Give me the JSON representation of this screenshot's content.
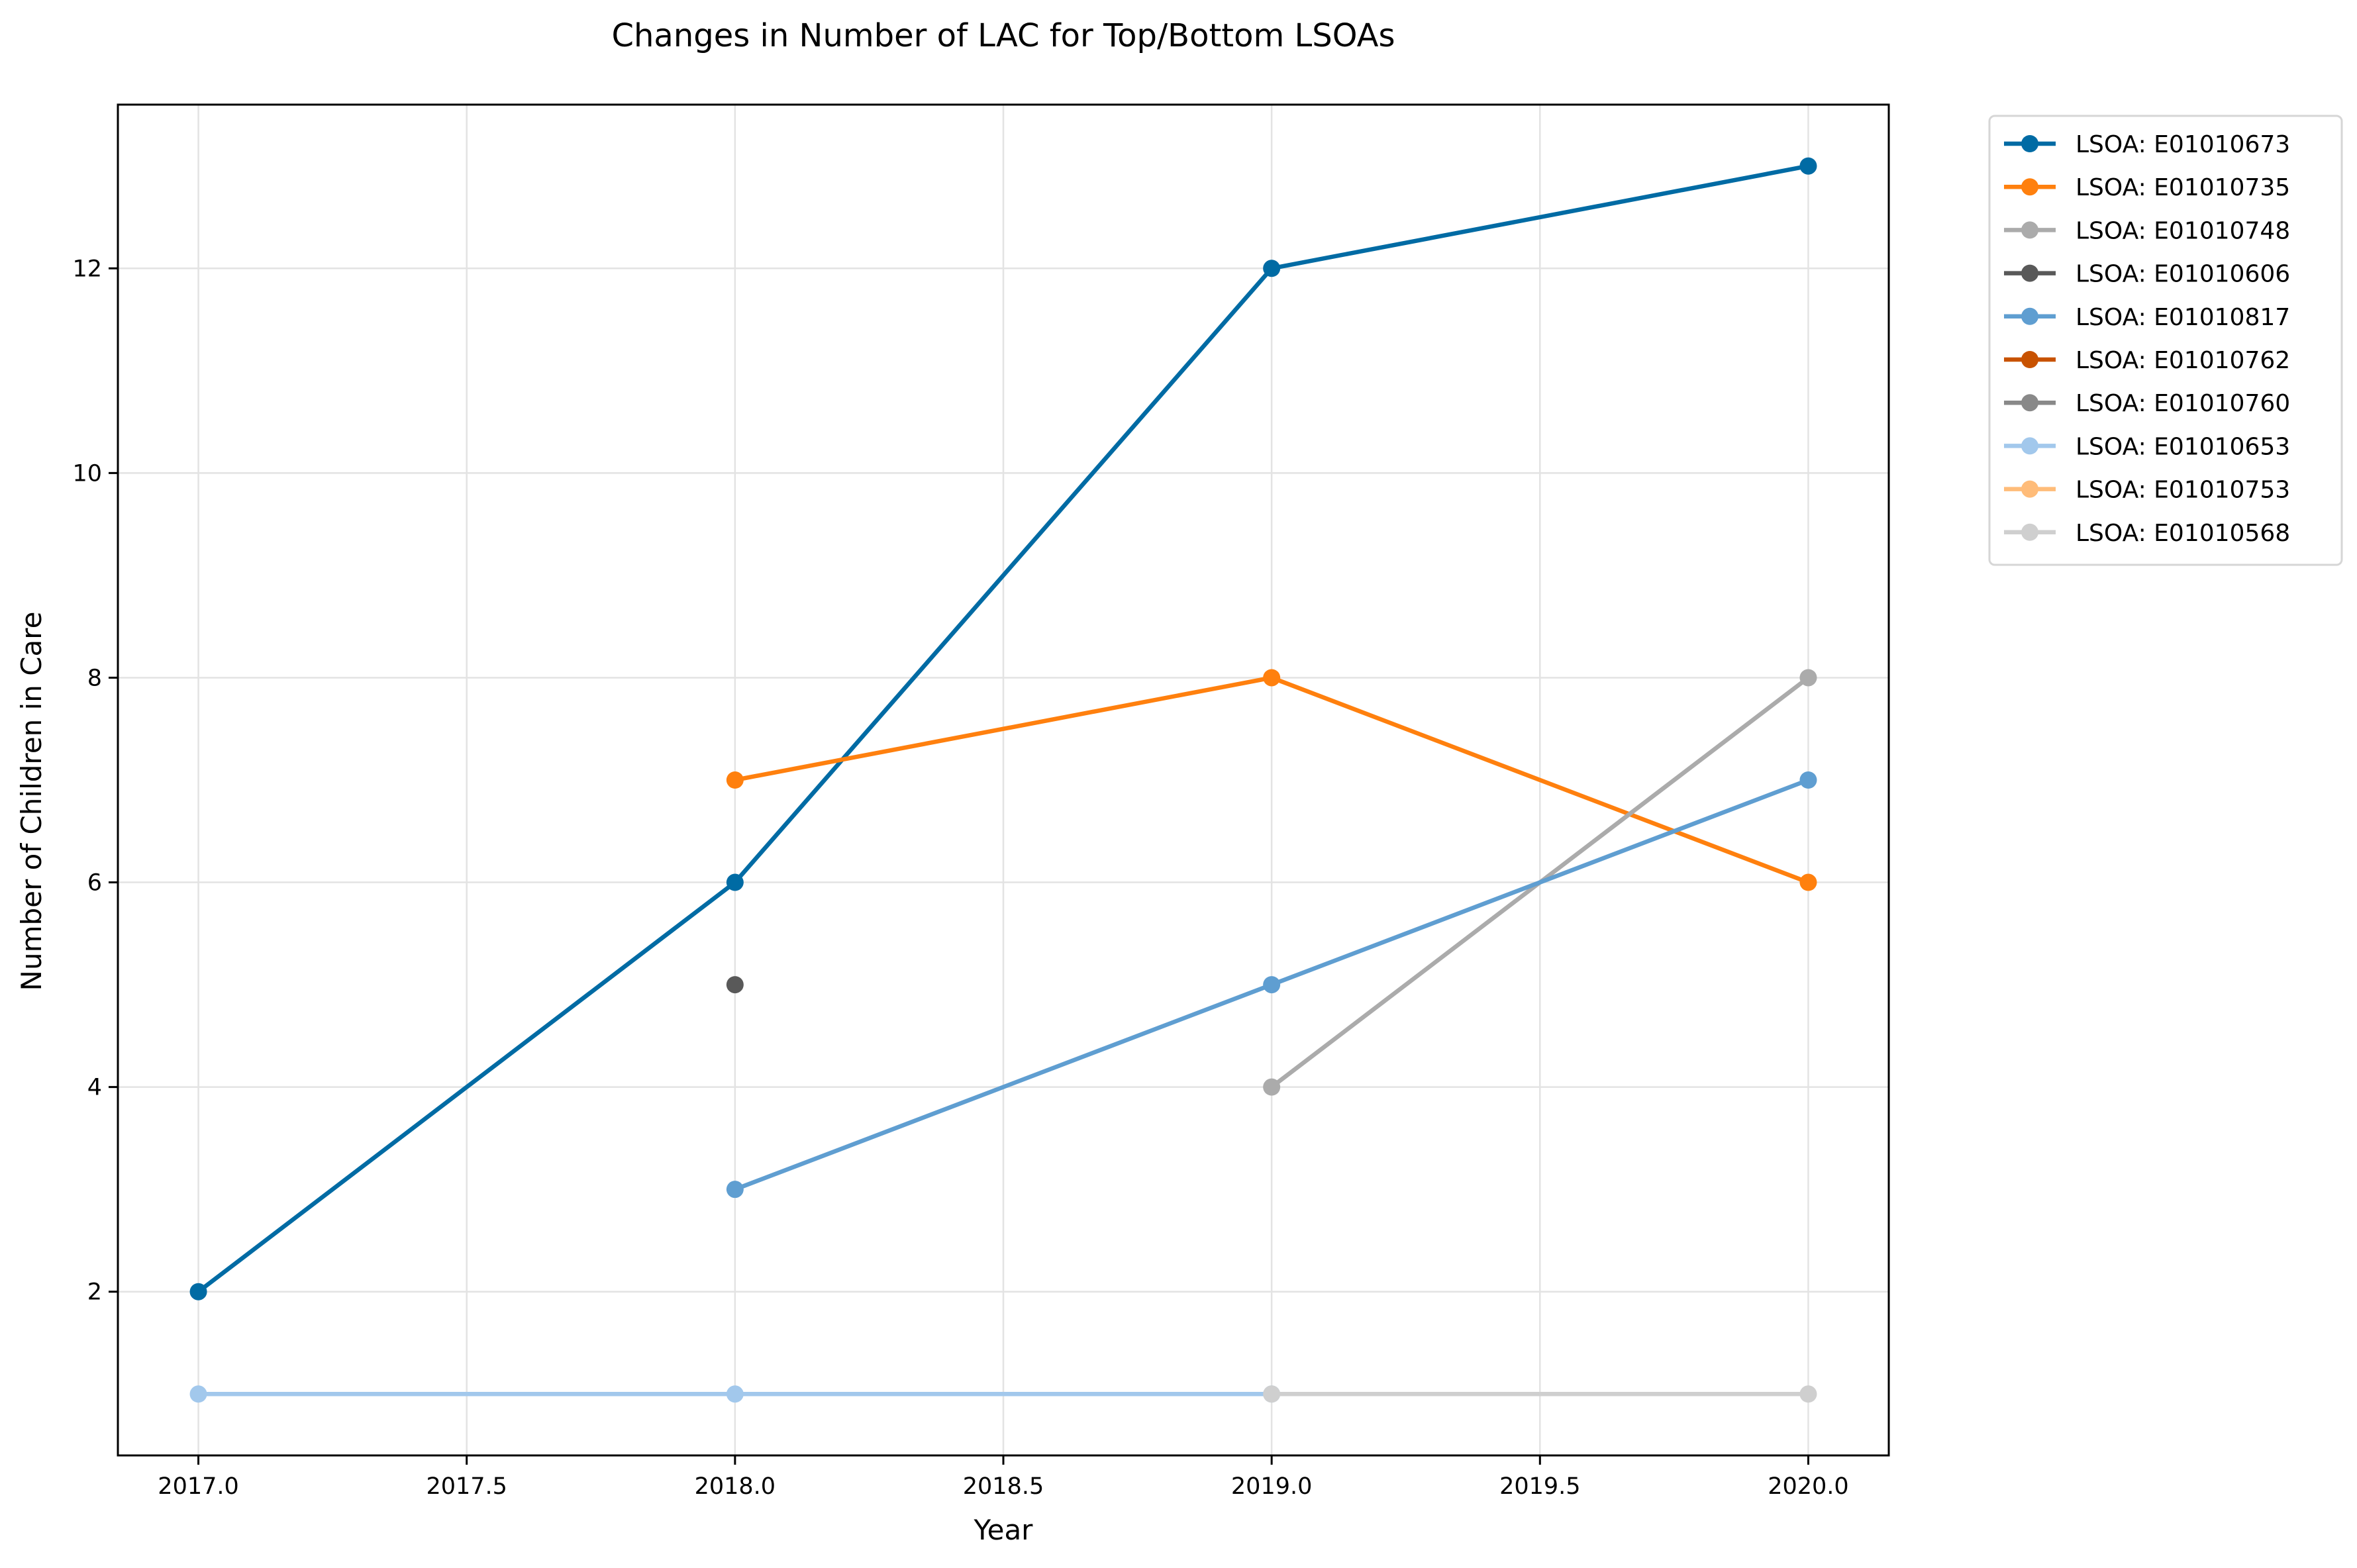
{
  "chart_data": {
    "type": "line",
    "title": "Changes in Number of LAC for Top/Bottom LSOAs",
    "xlabel": "Year",
    "ylabel": "Number of Children in Care",
    "xlim": [
      2016.85,
      2020.15
    ],
    "ylim": [
      0.4,
      13.6
    ],
    "xticks": [
      2017.0,
      2017.5,
      2018.0,
      2018.5,
      2019.0,
      2019.5,
      2020.0
    ],
    "xtick_labels": [
      "2017.0",
      "2017.5",
      "2018.0",
      "2018.5",
      "2019.0",
      "2019.5",
      "2020.0"
    ],
    "yticks": [
      2,
      4,
      6,
      8,
      10,
      12
    ],
    "ytick_labels": [
      "2",
      "4",
      "6",
      "8",
      "10",
      "12"
    ],
    "grid": true,
    "legend_position": "outside-right",
    "series": [
      {
        "name": "LSOA: E01010673",
        "color": "#006ba4",
        "points": [
          [
            2017,
            2
          ],
          [
            2018,
            6
          ],
          [
            2019,
            12
          ],
          [
            2020,
            13
          ]
        ]
      },
      {
        "name": "LSOA: E01010735",
        "color": "#ff800e",
        "points": [
          [
            2018,
            7
          ],
          [
            2019,
            8
          ],
          [
            2020,
            6
          ]
        ]
      },
      {
        "name": "LSOA: E01010748",
        "color": "#ababab",
        "points": [
          [
            2019,
            4
          ],
          [
            2020,
            8
          ]
        ]
      },
      {
        "name": "LSOA: E01010606",
        "color": "#595959",
        "points": [
          [
            2018,
            5
          ]
        ]
      },
      {
        "name": "LSOA: E01010817",
        "color": "#5f9ed1",
        "points": [
          [
            2018,
            3
          ],
          [
            2019,
            5
          ],
          [
            2020,
            7
          ]
        ]
      },
      {
        "name": "LSOA: E01010762",
        "color": "#c85200",
        "points": []
      },
      {
        "name": "LSOA: E01010760",
        "color": "#898989",
        "points": []
      },
      {
        "name": "LSOA: E01010653",
        "color": "#a2c8ec",
        "points": [
          [
            2017,
            1
          ],
          [
            2018,
            1
          ],
          [
            2019,
            1
          ]
        ]
      },
      {
        "name": "LSOA: E01010753",
        "color": "#ffbc79",
        "points": []
      },
      {
        "name": "LSOA: E01010568",
        "color": "#cfcfcf",
        "points": [
          [
            2019,
            1
          ],
          [
            2020,
            1
          ]
        ]
      }
    ]
  }
}
